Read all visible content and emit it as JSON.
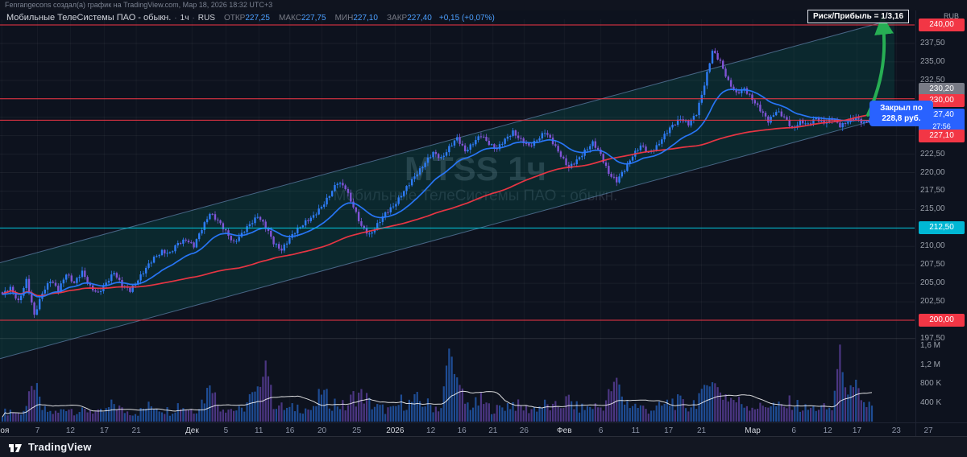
{
  "attribution": "Fenrangecons создал(а) график на TradingView.com, Мар 18, 2026 18:32 UTC+3",
  "legend": {
    "title": "Мобильные ТелеСистемы ПАО - обыкн.",
    "sep": "·",
    "timeframe": "1ч",
    "exchange": "RUS",
    "o_label": "ОТКР",
    "o": "227,25",
    "h_label": "МАКС",
    "h": "227,75",
    "l_label": "МИН",
    "l": "227,10",
    "c_label": "ЗАКР",
    "c": "227,40",
    "change": "+0,15 (+0,07%)"
  },
  "risk_box": {
    "label": "Риск/Прибыль = 1/3,16"
  },
  "callout": {
    "line1": "Закрыл по",
    "line2": "228,8 руб."
  },
  "watermark": {
    "line1": "MTSS 1ч",
    "line2": "Мобильные ТелеСистемы ПАО - обыкн."
  },
  "axis": {
    "currency": "RUB",
    "badges": [
      {
        "label": "240,00",
        "value": 240,
        "color": "#f23645"
      },
      {
        "label": "230,20",
        "value": 230.2,
        "color": "#787b86"
      },
      {
        "label": "230,00",
        "value": 230,
        "color": "#f23645"
      },
      {
        "label": "227,40",
        "value": 227.4,
        "color": "#2962ff",
        "countdown": "27:56"
      },
      {
        "label": "227,10",
        "value": 227.1,
        "color": "#f23645"
      },
      {
        "label": "212,50",
        "value": 212.5,
        "color": "#00b7d4"
      },
      {
        "label": "200,00",
        "value": 200,
        "color": "#f23645"
      }
    ],
    "volume_labels": [
      {
        "label": "1,6 M",
        "v": 1600
      },
      {
        "label": "1,2 M",
        "v": 1200
      },
      {
        "label": "800 K",
        "v": 800
      },
      {
        "label": "400 K",
        "v": 400
      }
    ]
  },
  "footer": {
    "brand": "TradingView"
  },
  "chart_data": {
    "type": "candlestick",
    "symbol": "MTSS",
    "title": "Мобильные ТелеСистемы ПАО - обыкн.",
    "timeframe": "1ч",
    "currency": "RUB",
    "ylim": [
      197.5,
      240
    ],
    "gridline_step": 2.5,
    "anchors_close": [
      203.5,
      204.3,
      202.6,
      205.4,
      200.6,
      203.8,
      205.4,
      204.0,
      206.4,
      205.0,
      206.5,
      204.6,
      203.6,
      205.0,
      206.6,
      204.6,
      204.0,
      205.6,
      207.0,
      208.4,
      209.4,
      209.0,
      210.4,
      211.0,
      210.0,
      212.4,
      214.6,
      213.4,
      212.0,
      210.6,
      211.6,
      213.0,
      214.2,
      212.6,
      210.5,
      209.6,
      211.0,
      212.4,
      213.4,
      214.0,
      215.4,
      217.0,
      218.6,
      218.0,
      215.4,
      212.6,
      211.6,
      213.0,
      214.4,
      215.5,
      217.0,
      218.4,
      220.0,
      221.4,
      222.6,
      222.0,
      223.4,
      224.6,
      223.0,
      224.0,
      225.0,
      224.0,
      223.2,
      224.4,
      225.6,
      224.4,
      223.5,
      224.5,
      225.5,
      224.0,
      222.4,
      220.6,
      221.6,
      223.0,
      224.0,
      222.4,
      220.0,
      218.8,
      220.4,
      222.4,
      223.6,
      222.6,
      223.6,
      225.0,
      226.4,
      227.4,
      226.5,
      228.0,
      232.0,
      236.4,
      235.0,
      232.4,
      230.6,
      231.4,
      230.0,
      228.4,
      227.0,
      228.4,
      227.4,
      226.0,
      227.0,
      226.4,
      227.4,
      226.8,
      227.2,
      226.4,
      227.0,
      227.3,
      226.7,
      227.4
    ],
    "volume_anchors_k": [
      180,
      240,
      160,
      320,
      720,
      260,
      200,
      180,
      330,
      240,
      210,
      260,
      180,
      230,
      390,
      240,
      200,
      190,
      300,
      350,
      280,
      220,
      360,
      300,
      240,
      430,
      820,
      360,
      300,
      260,
      230,
      480,
      540,
      1300,
      430,
      300,
      260,
      320,
      280,
      240,
      600,
      430,
      390,
      300,
      520,
      650,
      390,
      300,
      260,
      240,
      420,
      390,
      450,
      380,
      320,
      300,
      1550,
      900,
      380,
      330,
      430,
      300,
      260,
      340,
      390,
      300,
      260,
      300,
      350,
      280,
      360,
      450,
      300,
      280,
      330,
      300,
      530,
      920,
      420,
      360,
      300,
      260,
      280,
      350,
      430,
      390,
      300,
      470,
      720,
      880,
      630,
      530,
      430,
      380,
      340,
      300,
      390,
      320,
      300,
      430,
      300,
      260,
      300,
      280,
      260,
      1500,
      430,
      820,
      380,
      340
    ],
    "hlines": [
      {
        "price": 240,
        "color": "#f23645",
        "label": "240,00"
      },
      {
        "price": 230,
        "color": "#f23645",
        "label": "230,00"
      },
      {
        "price": 227.1,
        "color": "#f23645",
        "label": "227,10"
      },
      {
        "price": 212.5,
        "color": "#00c8e0",
        "label": "212,50"
      },
      {
        "price": 200,
        "color": "#f23645",
        "label": "200,00"
      }
    ],
    "channel": {
      "x0_frac": 0.0,
      "top0": 207.8,
      "x1_frac": 0.978,
      "top1": 240.8,
      "width": 13,
      "fill": "rgba(8,153,129,0.16)",
      "stroke": "rgba(120,160,210,0.55)"
    },
    "arrow": {
      "from_price": 227.8,
      "to_price": 239.8,
      "color": "#27ae54"
    },
    "colors": {
      "up": "#2e7cf6",
      "down": "#8054d6",
      "ma_fast": "#2979ff",
      "ma_slow": "#f23645",
      "vol_up": "rgba(46,124,246,0.55)",
      "vol_down": "rgba(128,84,214,0.55)",
      "volume_ma": "#ffffff"
    },
    "time_labels": [
      {
        "t": "Ноя",
        "f": 0.002,
        "major": true
      },
      {
        "t": "7",
        "f": 0.041
      },
      {
        "t": "12",
        "f": 0.077
      },
      {
        "t": "17",
        "f": 0.114
      },
      {
        "t": "21",
        "f": 0.149
      },
      {
        "t": "Дек",
        "f": 0.21,
        "major": true
      },
      {
        "t": "5",
        "f": 0.247
      },
      {
        "t": "11",
        "f": 0.283
      },
      {
        "t": "16",
        "f": 0.317
      },
      {
        "t": "20",
        "f": 0.352
      },
      {
        "t": "25",
        "f": 0.39
      },
      {
        "t": "2026",
        "f": 0.432,
        "major": true
      },
      {
        "t": "12",
        "f": 0.471
      },
      {
        "t": "16",
        "f": 0.505
      },
      {
        "t": "21",
        "f": 0.539
      },
      {
        "t": "26",
        "f": 0.573
      },
      {
        "t": "Фев",
        "f": 0.617,
        "major": true
      },
      {
        "t": "6",
        "f": 0.657
      },
      {
        "t": "11",
        "f": 0.695
      },
      {
        "t": "17",
        "f": 0.731
      },
      {
        "t": "21",
        "f": 0.767
      },
      {
        "t": "Мар",
        "f": 0.823,
        "major": true
      },
      {
        "t": "6",
        "f": 0.868
      },
      {
        "t": "12",
        "f": 0.905
      },
      {
        "t": "17",
        "f": 0.937
      },
      {
        "t": "23",
        "f": 0.98
      },
      {
        "t": "27",
        "f": 1.015
      }
    ]
  }
}
